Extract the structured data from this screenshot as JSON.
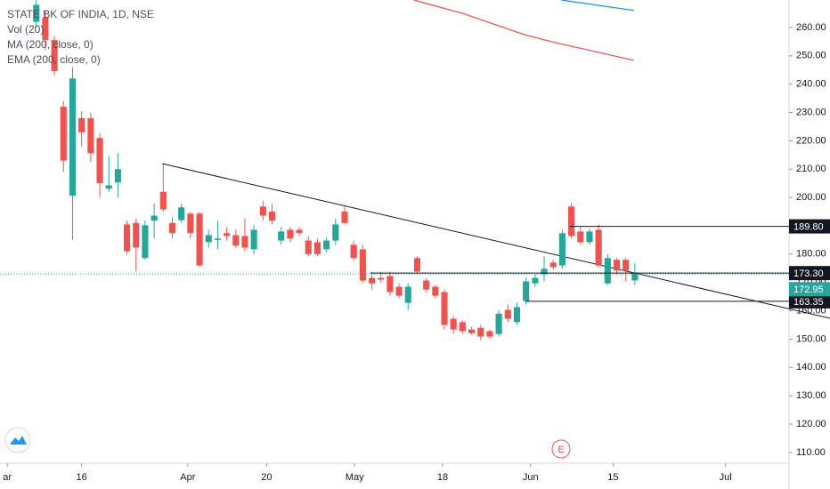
{
  "chart_data": {
    "type": "candlestick",
    "title": "STATE BK OF INDIA, 1D, NSE",
    "indicators": [
      "Vol (20)"
    ],
    "up_color": "#26a69a",
    "down_color": "#ef5350",
    "open": [
      262,
      263.5,
      255.6,
      232,
      200.6,
      228,
      228,
      221,
      203.1,
      205.3,
      190.5,
      191,
      178.6,
      191.8,
      202,
      191,
      192,
      194.3,
      194.3,
      184.2,
      185,
      187.4,
      186.7,
      186.4,
      181.7,
      196.8,
      195,
      184.8,
      188.6,
      188.6,
      184.8,
      184.2,
      181.7,
      184.8,
      195,
      183.3,
      181.7,
      171.6,
      171.6,
      172.3,
      168.5,
      162.8,
      178.6,
      170.7,
      168.5,
      166.6,
      157.2,
      156,
      153.4,
      154,
      152.8,
      151.8,
      160.3,
      156,
      163.5,
      169.7,
      172.9,
      177,
      176,
      196.8,
      188,
      184.2,
      188.6,
      169.7,
      178,
      178,
      170.7
    ],
    "high": [
      270,
      266,
      257,
      234,
      246,
      230.5,
      230,
      222.6,
      214.7,
      215.7,
      191.8,
      192.5,
      191.8,
      198,
      211.6,
      193,
      198,
      195,
      195,
      188.6,
      191.8,
      189.6,
      188.6,
      192.5,
      190.2,
      198.7,
      197.7,
      189.6,
      189.6,
      189.6,
      186.4,
      185.5,
      185.8,
      192.5,
      196.8,
      184.8,
      183.3,
      173.8,
      173.8,
      173.8,
      169.7,
      169.7,
      179.2,
      171.6,
      169.1,
      167.5,
      158.2,
      156.6,
      154.4,
      155,
      153.4,
      160.3,
      162.2,
      162.8,
      171.6,
      172.9,
      179.2,
      178,
      188.6,
      198,
      189.6,
      189,
      190.5,
      180,
      178.6,
      178.6,
      176.7
    ],
    "low": [
      260,
      252,
      243,
      209,
      185,
      218,
      212.5,
      200,
      202,
      200,
      180,
      173.8,
      178,
      185.5,
      195,
      185.5,
      191,
      185.5,
      175.5,
      182.3,
      181.7,
      184.8,
      182.3,
      181,
      180,
      191.8,
      190.5,
      183.3,
      184.2,
      186.4,
      179.2,
      179.2,
      180.7,
      183.3,
      190.5,
      177.6,
      169.7,
      167.5,
      170,
      165.3,
      164.5,
      160.3,
      172.9,
      166.6,
      164.4,
      153.4,
      151.8,
      151.8,
      151.5,
      149.6,
      150.2,
      150.9,
      156,
      155,
      162.2,
      168.5,
      170.4,
      174.5,
      174.8,
      185.5,
      183.3,
      183.3,
      175.4,
      169.1,
      172.9,
      170.4,
      169.1
    ],
    "close": [
      268,
      255.6,
      244.6,
      213,
      242,
      223,
      215.6,
      205,
      204.3,
      210,
      181,
      182.3,
      190.2,
      193.6,
      195.8,
      187.4,
      196.5,
      187.4,
      176,
      186.7,
      185.5,
      186.4,
      183,
      182.3,
      188.6,
      193.6,
      191.8,
      188,
      185.5,
      187.4,
      180,
      180,
      184.8,
      190.5,
      191,
      178.6,
      170.7,
      169.7,
      171,
      166.6,
      165.3,
      168.5,
      173.8,
      167.5,
      165.3,
      155,
      153.4,
      152.8,
      152.1,
      150.9,
      150.9,
      159,
      157.2,
      161.3,
      170.4,
      171.6,
      174.8,
      175.4,
      187.4,
      186.4,
      184.2,
      188,
      176,
      178.6,
      174.2,
      174.2,
      173.5
    ],
    "series": [
      {
        "name": "MA (200, close, 0)",
        "color": "#ef5350",
        "x": [
          41.6,
          47,
          53.9,
          56.9,
          65.9
        ],
        "values": [
          269.7,
          265,
          257.4,
          254.9,
          248.4
        ]
      },
      {
        "name": "EMA (200, close, 0)",
        "color": "#2196f3",
        "x": [
          57.9,
          65.9
        ],
        "values": [
          269.7,
          266
        ]
      }
    ],
    "levels": [
      {
        "value": 189.8,
        "label": "189.80"
      },
      {
        "value": 173.3,
        "label": "173.30"
      },
      {
        "value": 163.35,
        "label": "163.35"
      }
    ],
    "last_price": {
      "value": 172.95,
      "label": "172.95"
    },
    "earnings_marker": "E",
    "xlim": [
      -4,
      83
    ],
    "xticks": [
      {
        "value": -3.2,
        "label": "ar"
      },
      {
        "value": 5,
        "label": "16"
      },
      {
        "value": 16.7,
        "label": "Apr"
      },
      {
        "value": 25.4,
        "label": "20"
      },
      {
        "value": 35.1,
        "label": "May"
      },
      {
        "value": 44.8,
        "label": "18"
      },
      {
        "value": 54.5,
        "label": "Jun"
      },
      {
        "value": 63.6,
        "label": "15"
      },
      {
        "value": 76,
        "label": "Jul"
      }
    ],
    "ylim": [
      106.2,
      269.7
    ],
    "yticks": [
      {
        "value": 110,
        "label": "110.00"
      },
      {
        "value": 120,
        "label": "120.00"
      },
      {
        "value": 130,
        "label": "130.00"
      },
      {
        "value": 140,
        "label": "140.00"
      },
      {
        "value": 150,
        "label": "150.00"
      },
      {
        "value": 160,
        "label": "160.00"
      },
      {
        "value": 170,
        "label": "170.00"
      },
      {
        "value": 180,
        "label": "180.00"
      },
      {
        "value": 190,
        "label": "190.00"
      },
      {
        "value": 200,
        "label": "200.00"
      },
      {
        "value": 210,
        "label": "210.00"
      },
      {
        "value": 220,
        "label": "220.00"
      },
      {
        "value": 230,
        "label": "230.00"
      },
      {
        "value": 240,
        "label": "240.00"
      },
      {
        "value": 250,
        "label": "250.00"
      },
      {
        "value": 260,
        "label": "260.00"
      }
    ]
  }
}
